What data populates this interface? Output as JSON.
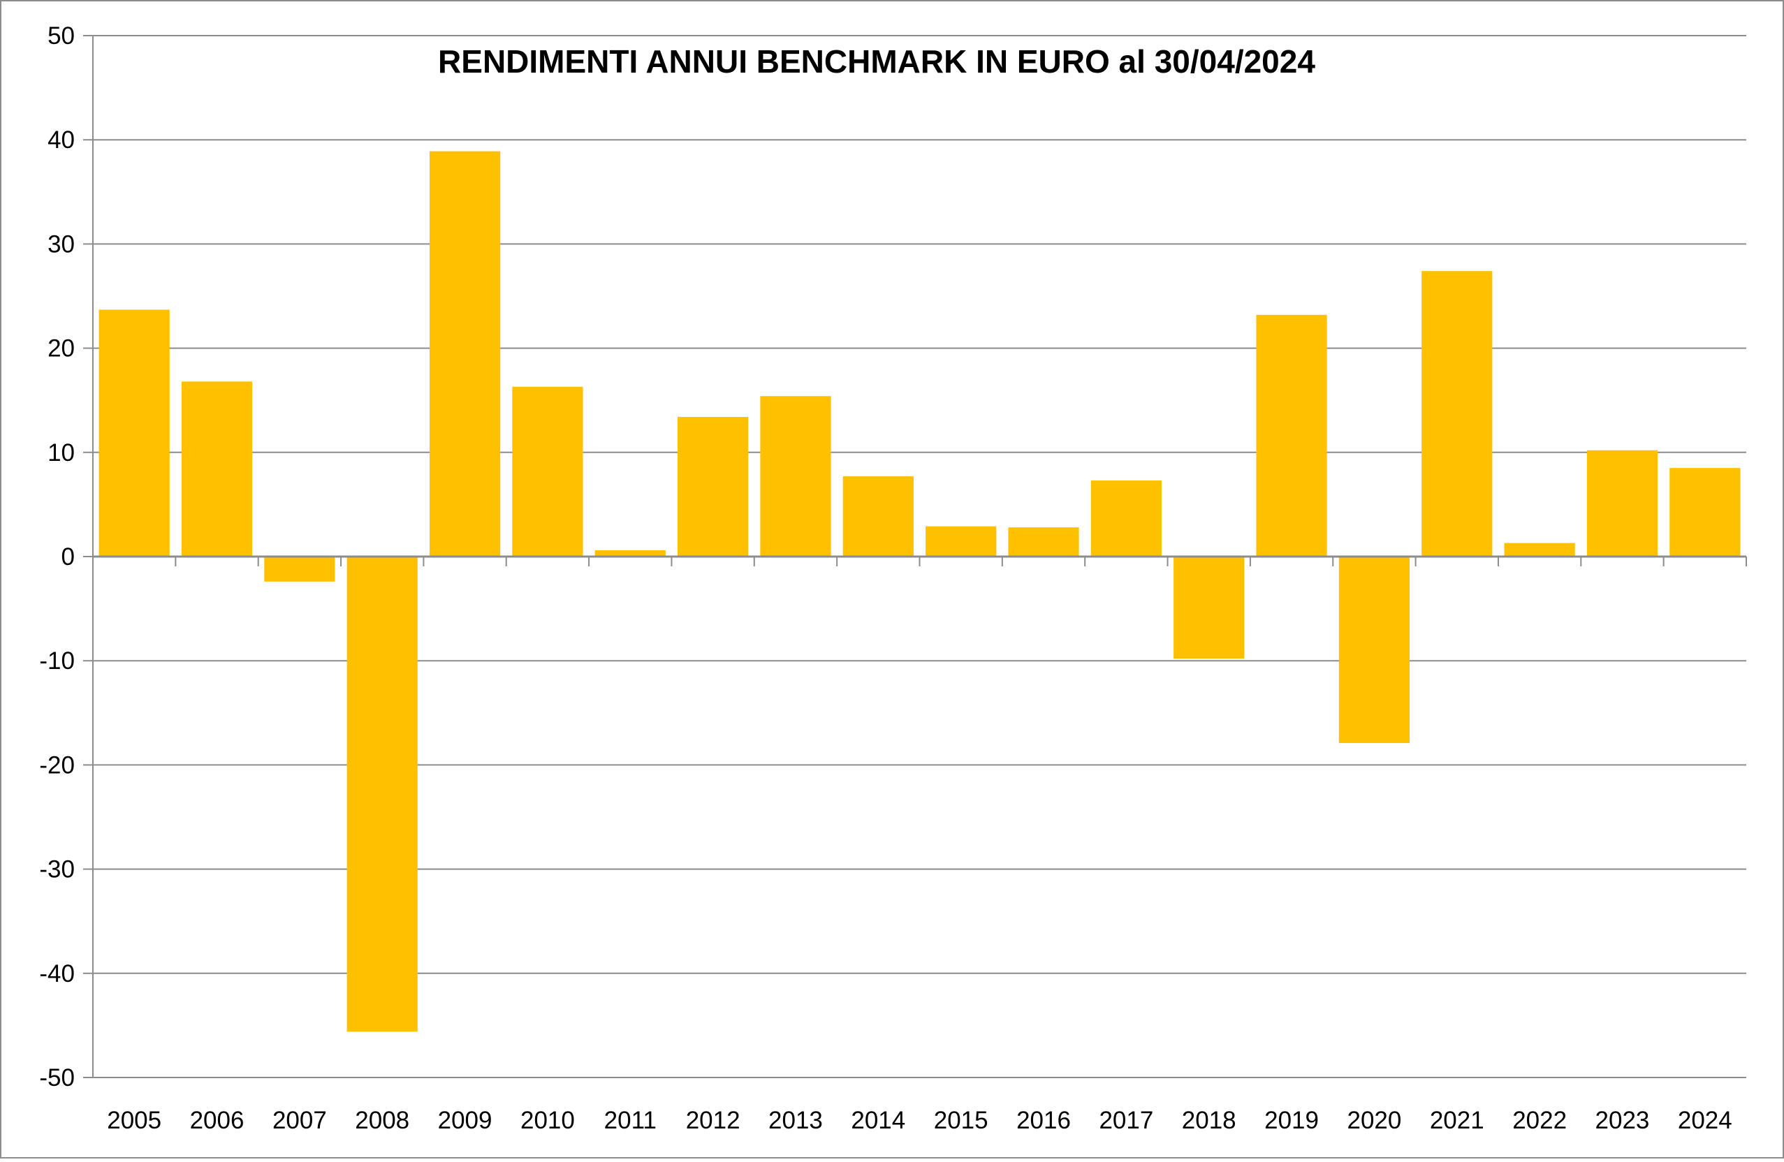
{
  "chart_data": {
    "type": "bar",
    "title": "RENDIMENTI ANNUI BENCHMARK IN EURO al 30/04/2024",
    "xlabel": "",
    "ylabel": "",
    "categories": [
      "2005",
      "2006",
      "2007",
      "2008",
      "2009",
      "2010",
      "2011",
      "2012",
      "2013",
      "2014",
      "2015",
      "2016",
      "2017",
      "2018",
      "2019",
      "2020",
      "2021",
      "2022",
      "2023",
      "2024"
    ],
    "values": [
      23.7,
      16.8,
      -2.4,
      -45.6,
      38.9,
      16.3,
      0.6,
      13.4,
      15.4,
      7.7,
      2.9,
      2.8,
      7.3,
      -9.8,
      23.2,
      -17.9,
      27.4,
      1.3,
      10.2,
      8.5
    ],
    "ylim": [
      -50,
      50
    ],
    "yticks": [
      50,
      40,
      30,
      20,
      10,
      0,
      -10,
      -20,
      -30,
      -40,
      -50
    ],
    "grid": true,
    "legend": "none",
    "colors": {
      "bar": "#FFC000",
      "grid": "#8C8C8C",
      "axis": "#8C8C8C",
      "border": "#8C8C8C",
      "text": "#000000"
    }
  }
}
